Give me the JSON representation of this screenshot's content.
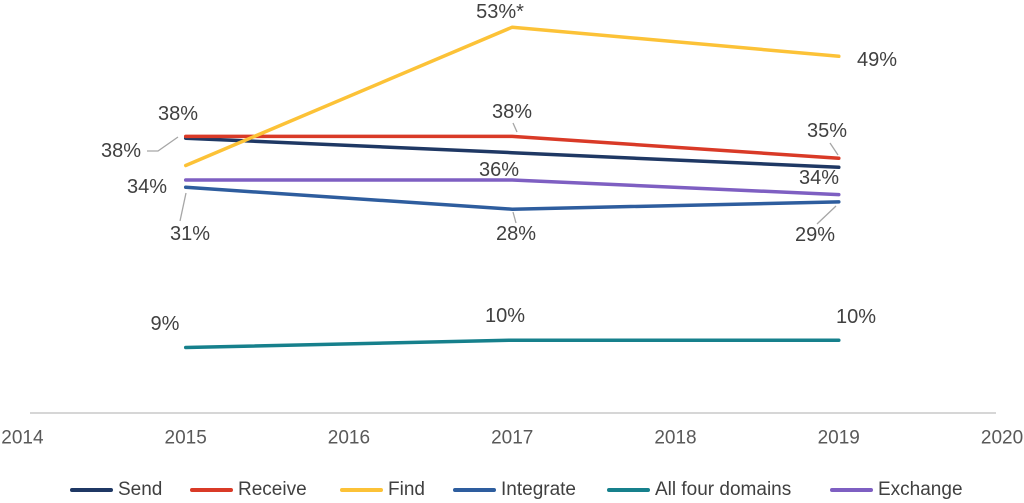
{
  "chart_data": {
    "type": "line",
    "title": "",
    "x": [
      2015,
      2017,
      2019
    ],
    "x_axis_ticks": [
      "2014",
      "2015",
      "2016",
      "2017",
      "2018",
      "2019",
      "2020"
    ],
    "x_axis_range": [
      2014,
      2020
    ],
    "y_unit": "percent",
    "y_range": [
      0,
      56
    ],
    "grid": false,
    "y_axis_visible": false,
    "legend_position": "bottom",
    "series": [
      {
        "name": "Send",
        "color": "#1f3864",
        "values": [
          38,
          36,
          34
        ],
        "point_labels": [
          "38%",
          "36%",
          "34%"
        ]
      },
      {
        "name": "Receive",
        "color": "#d93a27",
        "values": [
          38,
          38,
          35
        ],
        "point_labels": [
          "38%",
          "38%",
          "35%"
        ]
      },
      {
        "name": "Find",
        "color": "#fcc237",
        "values": [
          34,
          53,
          49
        ],
        "point_labels": [
          "34%",
          "53%*",
          "49%"
        ]
      },
      {
        "name": "Integrate",
        "color": "#2e5d9e",
        "values": [
          31,
          28,
          29
        ],
        "point_labels": [
          "31%",
          "28%",
          "29%"
        ]
      },
      {
        "name": "All four domains",
        "color": "#16808c",
        "values": [
          9,
          10,
          10
        ],
        "point_labels": [
          "9%",
          "10%",
          "10%"
        ]
      },
      {
        "name": "Exchange",
        "color": "#7e5fc2",
        "values": [
          32,
          32,
          30
        ],
        "point_labels": [
          "",
          "",
          ""
        ]
      }
    ]
  },
  "colors": {
    "background": "#ffffff",
    "axis_line": "#c8c8c8",
    "leader_line": "#a6a6a6",
    "data_label_text": "#404040",
    "axis_tick_text": "#595959",
    "legend_text": "#404040"
  }
}
